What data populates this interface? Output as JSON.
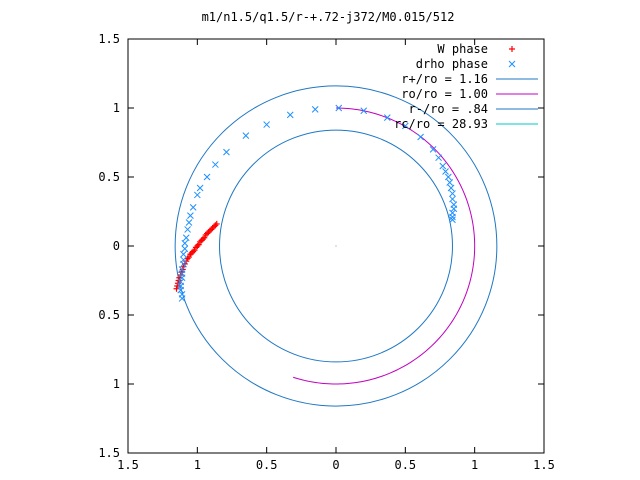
{
  "chart_data": {
    "type": "scatter",
    "title": "m1/n1.5/q1.5/r-+.72-j372/M0.015/512",
    "xlabel": "",
    "ylabel": "",
    "xlim": [
      -1.5,
      1.5
    ],
    "ylim": [
      -1.5,
      1.5
    ],
    "x_tick_labels": [
      "1.5",
      "1",
      "0.5",
      "0",
      "0.5",
      "1",
      "1.5"
    ],
    "x_tick_values": [
      -1.5,
      -1,
      -0.5,
      0,
      0.5,
      1,
      1.5
    ],
    "y_tick_labels": [
      "1.5",
      "1",
      "0.5",
      "0",
      "0.5",
      "1",
      "1.5"
    ],
    "y_tick_values": [
      1.5,
      1,
      0.5,
      0,
      -0.5,
      -1,
      -1.5
    ],
    "grid": false,
    "legend_position": "top-right",
    "origin_marker": [
      0,
      0
    ],
    "point_series": [
      {
        "name": "W phase",
        "color": "#ff0000",
        "marker": "plus",
        "points": [
          [
            -1.15,
            -0.31
          ],
          [
            -1.145,
            -0.29
          ],
          [
            -1.14,
            -0.27
          ],
          [
            -1.135,
            -0.25
          ],
          [
            -1.13,
            -0.23
          ],
          [
            -1.12,
            -0.21
          ],
          [
            -1.115,
            -0.19
          ],
          [
            -1.105,
            -0.17
          ],
          [
            -1.1,
            -0.15
          ],
          [
            -1.09,
            -0.13
          ],
          [
            -1.08,
            -0.11
          ],
          [
            -1.07,
            -0.09
          ],
          [
            -1.06,
            -0.08
          ],
          [
            -1.05,
            -0.06
          ],
          [
            -1.04,
            -0.05
          ],
          [
            -1.03,
            -0.04
          ],
          [
            -1.02,
            -0.03
          ],
          [
            -1.01,
            -0.01
          ],
          [
            -1.0,
            0.0
          ],
          [
            -0.99,
            0.01
          ],
          [
            -0.98,
            0.03
          ],
          [
            -0.97,
            0.04
          ],
          [
            -0.96,
            0.05
          ],
          [
            -0.95,
            0.06
          ],
          [
            -0.94,
            0.08
          ],
          [
            -0.93,
            0.09
          ],
          [
            -0.92,
            0.1
          ],
          [
            -0.91,
            0.11
          ],
          [
            -0.9,
            0.12
          ],
          [
            -0.89,
            0.13
          ],
          [
            -0.88,
            0.14
          ],
          [
            -0.87,
            0.15
          ],
          [
            -0.86,
            0.16
          ]
        ]
      },
      {
        "name": "drho phase",
        "color": "#1e90ff",
        "marker": "cross",
        "points": [
          [
            -1.11,
            -0.38
          ],
          [
            -1.11,
            -0.35
          ],
          [
            -1.12,
            -0.32
          ],
          [
            -1.12,
            -0.29
          ],
          [
            -1.12,
            -0.26
          ],
          [
            -1.11,
            -0.23
          ],
          [
            -1.11,
            -0.2
          ],
          [
            -1.11,
            -0.17
          ],
          [
            -1.1,
            -0.13
          ],
          [
            -1.1,
            -0.1
          ],
          [
            -1.1,
            -0.06
          ],
          [
            -1.09,
            -0.02
          ],
          [
            -1.09,
            0.02
          ],
          [
            -1.08,
            0.06
          ],
          [
            -1.07,
            0.12
          ],
          [
            -1.06,
            0.17
          ],
          [
            -1.05,
            0.22
          ],
          [
            -1.03,
            0.28
          ],
          [
            -1.0,
            0.37
          ],
          [
            -0.98,
            0.42
          ],
          [
            -0.93,
            0.5
          ],
          [
            -0.87,
            0.59
          ],
          [
            -0.79,
            0.68
          ],
          [
            -0.65,
            0.8
          ],
          [
            -0.5,
            0.88
          ],
          [
            -0.33,
            0.95
          ],
          [
            -0.15,
            0.99
          ],
          [
            0.02,
            1.0
          ],
          [
            0.2,
            0.98
          ],
          [
            0.37,
            0.93
          ],
          [
            0.5,
            0.87
          ],
          [
            0.61,
            0.79
          ],
          [
            0.7,
            0.7
          ],
          [
            0.74,
            0.64
          ],
          [
            0.77,
            0.58
          ],
          [
            0.79,
            0.54
          ],
          [
            0.81,
            0.5
          ],
          [
            0.82,
            0.46
          ],
          [
            0.83,
            0.42
          ],
          [
            0.84,
            0.38
          ],
          [
            0.84,
            0.34
          ],
          [
            0.85,
            0.3
          ],
          [
            0.85,
            0.27
          ],
          [
            0.84,
            0.24
          ],
          [
            0.84,
            0.21
          ],
          [
            0.84,
            0.19
          ]
        ]
      }
    ],
    "circle_series": [
      {
        "name": "r+/ro = 1.16",
        "color": "#1f77c4",
        "radius": 1.16
      },
      {
        "name": "ro/ro = 1.00",
        "color": "#c000c0",
        "radius": 1.0,
        "arc_deg": [
          90,
          252
        ]
      },
      {
        "name": "r-/ro = .84",
        "color": "#1f77c4",
        "radius": 0.84
      },
      {
        "name": "rc/ro = 28.93",
        "color": "#00c8c8",
        "radius": 28.93
      }
    ]
  }
}
